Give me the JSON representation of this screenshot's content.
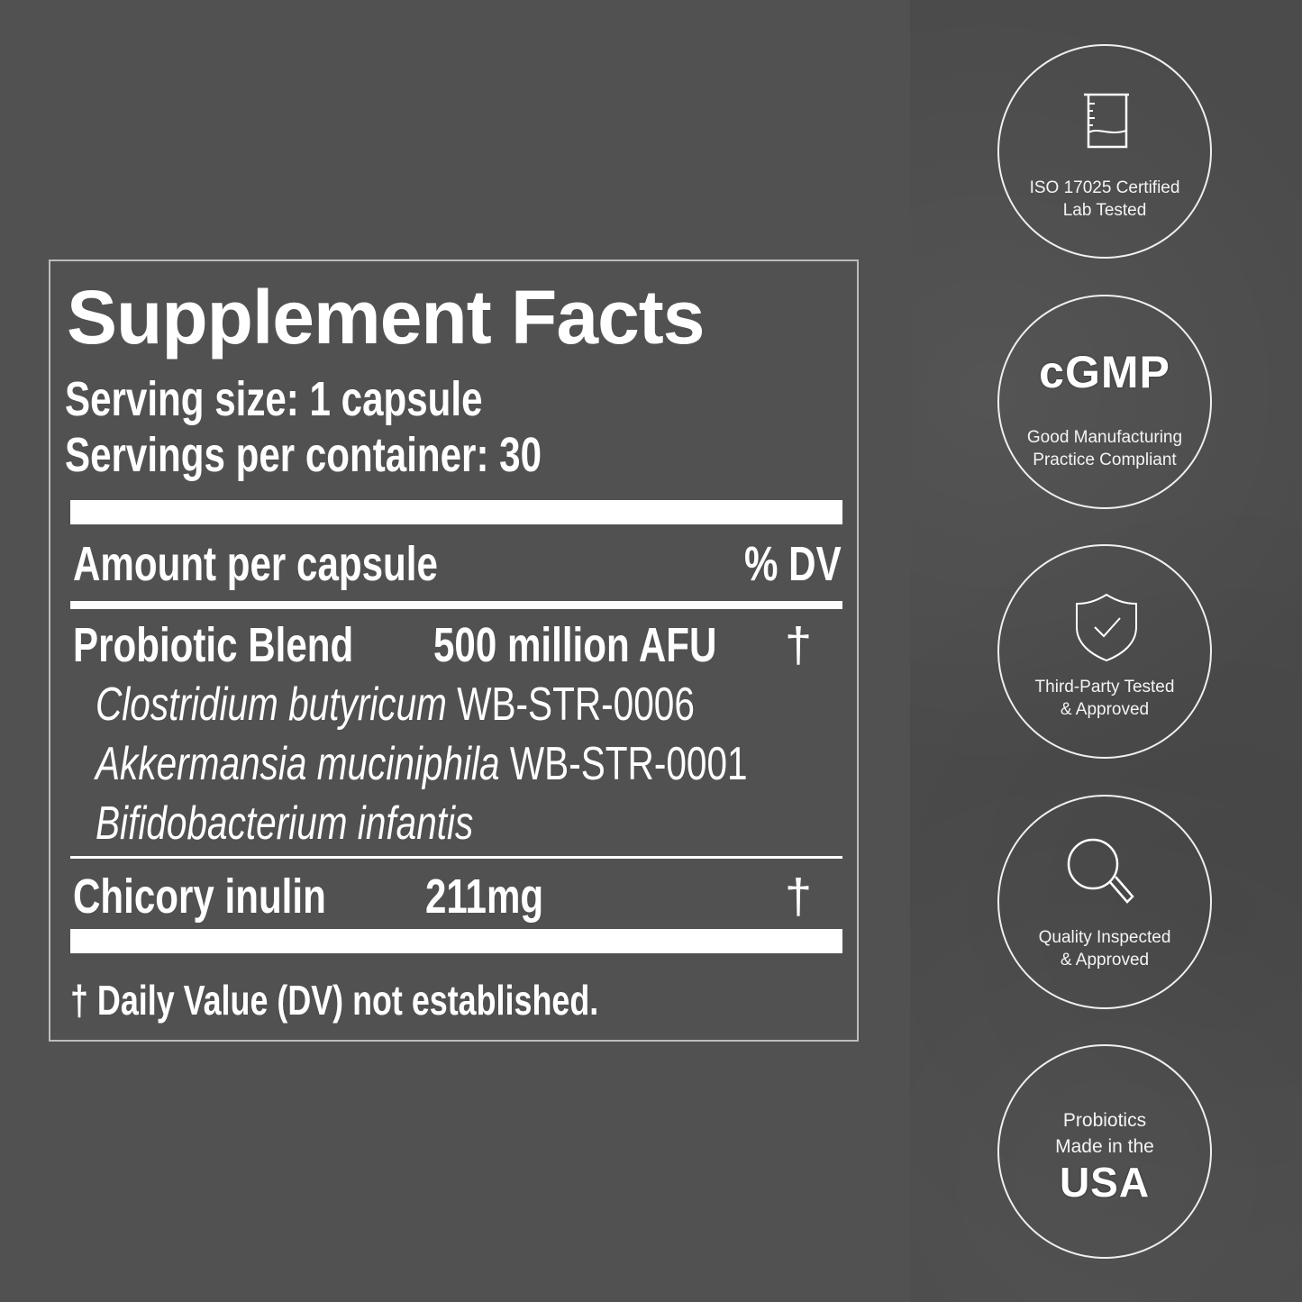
{
  "label": {
    "title": "Supplement Facts",
    "serving_size": "Serving size: 1 capsule",
    "servings_per_container": "Servings per container: 30",
    "amount_header": "Amount per capsule",
    "dv_header": "% DV",
    "rows": [
      {
        "name": "Probiotic Blend",
        "amount": "500 million AFU",
        "dv": "†"
      },
      {
        "name": "Chicory inulin",
        "amount": "211mg",
        "dv": "†"
      }
    ],
    "strains": [
      {
        "species": "Clostridium butyricum",
        "code": "WB-STR-0006"
      },
      {
        "species": "Akkermansia muciniphila",
        "code": "WB-STR-0001"
      },
      {
        "species": "Bifidobacterium infantis",
        "code": ""
      }
    ],
    "footnote": "† Daily Value (DV) not established."
  },
  "badges": [
    {
      "icon": "beaker-icon",
      "line1": "ISO 17025 Certified",
      "line2": "Lab Tested"
    },
    {
      "icon": "cgmp-logo",
      "logo_text": "cGMP",
      "line1": "Good Manufacturing",
      "line2": "Practice Compliant"
    },
    {
      "icon": "shield-check-icon",
      "line1": "Third-Party Tested",
      "line2": "& Approved"
    },
    {
      "icon": "magnifier-icon",
      "line1": "Quality Inspected",
      "line2": "& Approved"
    },
    {
      "icon": "usa-text",
      "line1": "Probiotics",
      "line2": "Made in the",
      "logo_text": "USA"
    }
  ],
  "colors": {
    "background": "#525152",
    "panel": "#4b4b4b",
    "foreground": "#ffffff"
  }
}
